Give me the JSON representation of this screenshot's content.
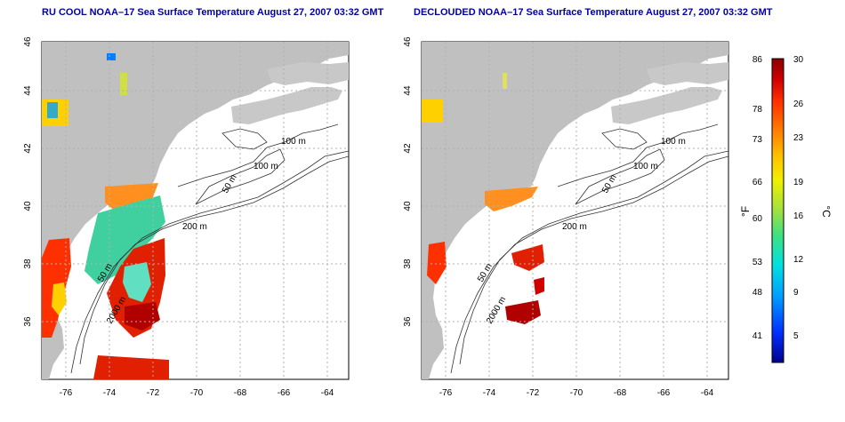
{
  "panels": [
    {
      "title": "RU COOL NOAA–17 Sea Surface Temperature August 27, 2007 03:32 GMT",
      "x_ticks": [
        "-76",
        "-74",
        "-72",
        "-70",
        "-68",
        "-66",
        "-64"
      ],
      "y_ticks": [
        "36",
        "38",
        "40",
        "42",
        "44",
        "46"
      ],
      "contour_labels": [
        "100 m",
        "100 m",
        "50 m",
        "200 m",
        "50 m",
        "2000 m"
      ]
    },
    {
      "title": "DECLOUDED NOAA–17 Sea Surface Temperature August 27, 2007 03:32 GMT",
      "x_ticks": [
        "-76",
        "-74",
        "-72",
        "-70",
        "-68",
        "-66",
        "-64"
      ],
      "y_ticks": [
        "36",
        "38",
        "40",
        "42",
        "44",
        "46"
      ],
      "contour_labels": [
        "100 m",
        "100 m",
        "50 m",
        "200 m",
        "50 m",
        "2000 m"
      ]
    }
  ],
  "colorbar": {
    "fahrenheit_unit": "°F",
    "celsius_unit": "°C",
    "fahrenheit_ticks": [
      "86",
      "78",
      "73",
      "66",
      "60",
      "53",
      "48",
      "41"
    ],
    "celsius_ticks": [
      "30",
      "26",
      "23",
      "19",
      "16",
      "12",
      "9",
      "5"
    ],
    "colors": [
      "#00008b",
      "#0030ff",
      "#00a0ff",
      "#00e0e0",
      "#40e080",
      "#a0e040",
      "#f0f000",
      "#ffc000",
      "#ff8000",
      "#ff3000",
      "#d00000",
      "#8b0000"
    ]
  },
  "colors": {
    "land": "#c0c0c0",
    "title": "#0000a0",
    "contour": "#333333",
    "grid": "#b0b0b0"
  }
}
